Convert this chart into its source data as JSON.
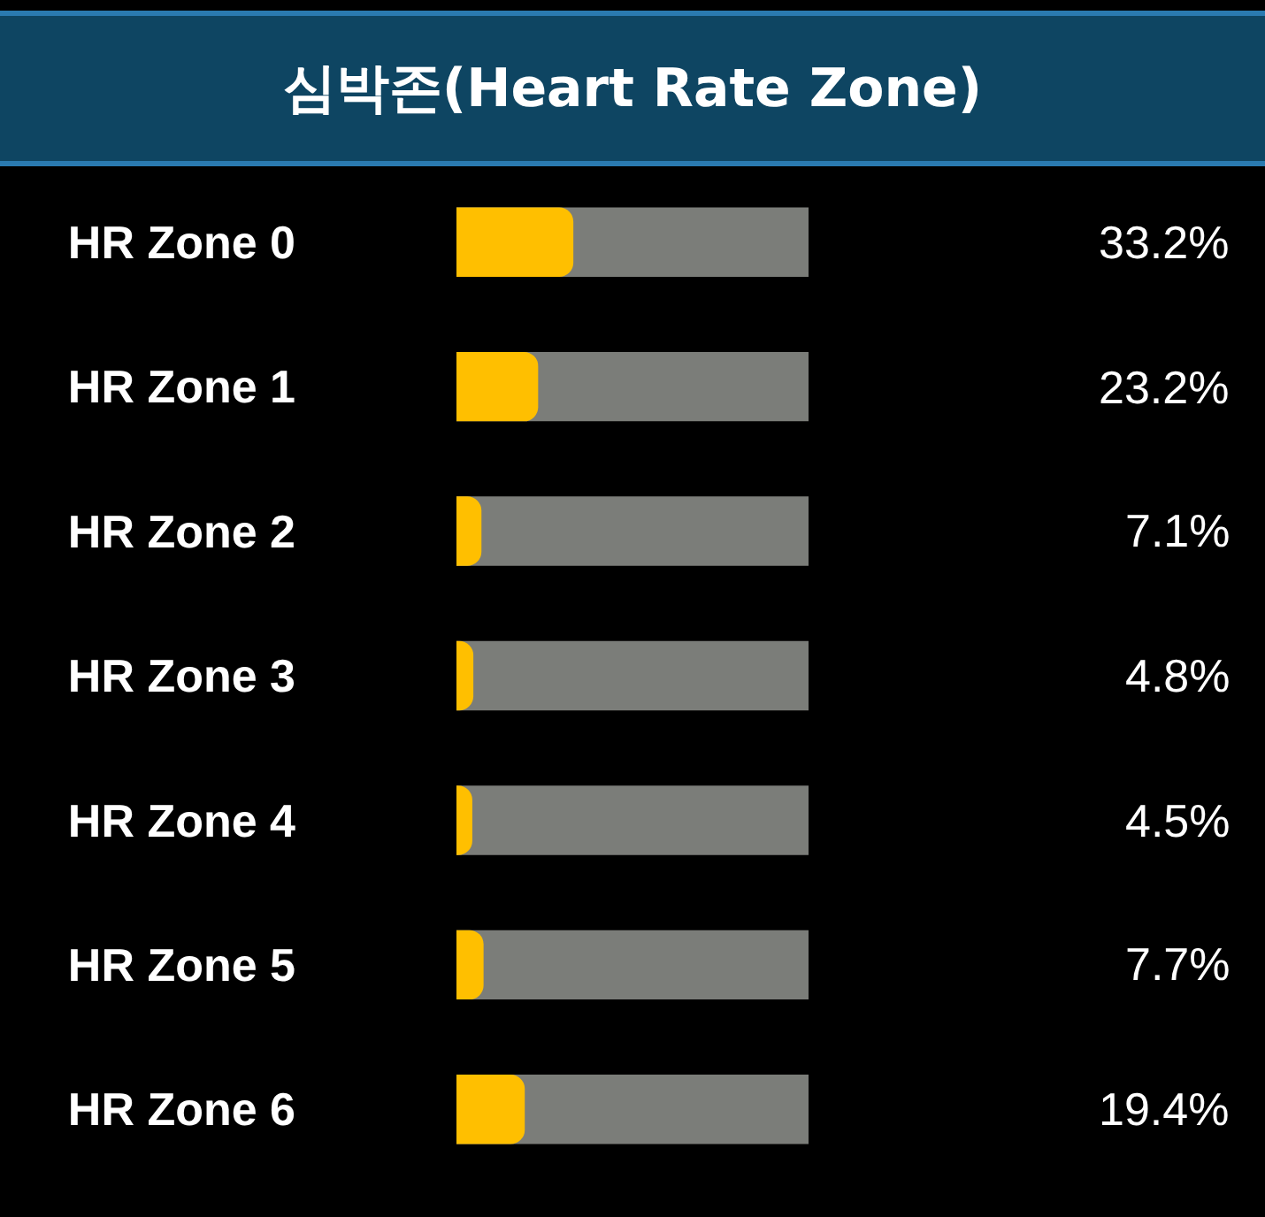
{
  "chart_data": {
    "type": "bar",
    "orientation": "horizontal",
    "title": "심박존(Heart Rate Zone)",
    "categories": [
      "HR Zone 0",
      "HR Zone 1",
      "HR Zone 2",
      "HR Zone 3",
      "HR Zone 4",
      "HR Zone 5",
      "HR Zone 6"
    ],
    "values": [
      33.2,
      23.2,
      7.1,
      4.8,
      4.5,
      7.7,
      19.4
    ],
    "value_labels": [
      "33.2%",
      "23.2%",
      "7.1%",
      "4.8%",
      "4.5%",
      "7.7%",
      "19.4%"
    ],
    "color": "#ffbf00",
    "xlim": [
      0,
      100
    ],
    "tick_labels": "y",
    "grid": false,
    "legend": false
  }
}
